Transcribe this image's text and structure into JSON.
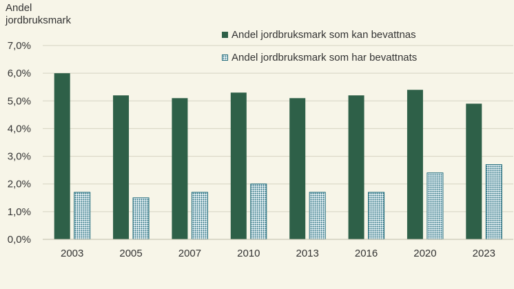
{
  "chart_data": {
    "type": "bar",
    "ylabel": "Andel jordbruksmark",
    "categories": [
      "2003",
      "2005",
      "2007",
      "2010",
      "2013",
      "2016",
      "2020",
      "2023"
    ],
    "series": [
      {
        "name": "Andel jordbruksmark som kan bevattnas",
        "values": [
          6.0,
          5.2,
          5.1,
          5.3,
          5.1,
          5.2,
          5.4,
          4.9
        ],
        "color": "#2e6048"
      },
      {
        "name": "Andel jordbruksmark som har bevattnats",
        "values": [
          1.7,
          1.5,
          1.7,
          2.0,
          1.7,
          1.7,
          2.4,
          2.7
        ],
        "color": "#1f6a7a"
      }
    ],
    "ylim": [
      0,
      7
    ],
    "yticks": [
      "0,0%",
      "1,0%",
      "2,0%",
      "3,0%",
      "4,0%",
      "5,0%",
      "6,0%",
      "7,0%"
    ],
    "grid": true,
    "legend_position": "top-right"
  }
}
